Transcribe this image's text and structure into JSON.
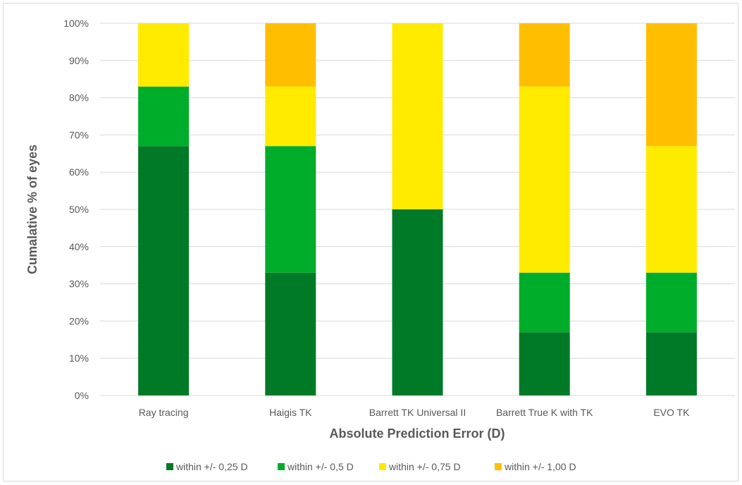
{
  "chart_data": {
    "type": "bar",
    "stacked": true,
    "categories": [
      "Ray tracing",
      "Haigis TK",
      "Barrett TK Universal II",
      "Barrett True K with TK",
      "EVO TK"
    ],
    "series": [
      {
        "name": "within +/- 0,25 D",
        "color": "#007a26",
        "values": [
          67,
          33,
          50,
          17,
          17
        ]
      },
      {
        "name": "within +/- 0,5 D",
        "color": "#00ad2a",
        "values": [
          16,
          34,
          0,
          16,
          16
        ]
      },
      {
        "name": "within +/- 0,75 D",
        "color": "#ffeb00",
        "values": [
          17,
          16,
          50,
          50,
          34
        ]
      },
      {
        "name": "within +/- 1,00 D",
        "color": "#ffbf00",
        "values": [
          0,
          17,
          0,
          17,
          33
        ]
      }
    ],
    "xlabel": "Absolute Prediction Error (D)",
    "ylabel": "Cumalative % of eyes",
    "ylim": [
      0,
      100
    ],
    "yticks": [
      0,
      10,
      20,
      30,
      40,
      50,
      60,
      70,
      80,
      90,
      100
    ],
    "ytick_labels": [
      "0%",
      "10%",
      "20%",
      "30%",
      "40%",
      "50%",
      "60%",
      "70%",
      "80%",
      "90%",
      "100%"
    ],
    "grid": true,
    "legend_position": "bottom",
    "grid_color": "#d9d9d9",
    "text_color": "#595959"
  }
}
